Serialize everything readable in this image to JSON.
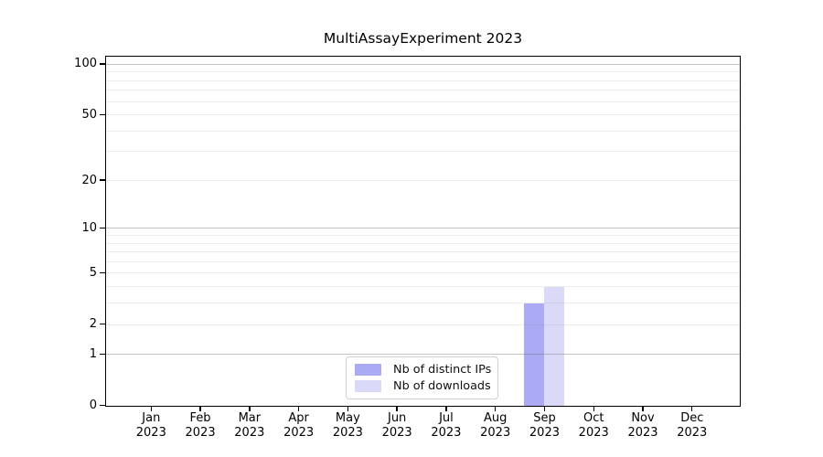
{
  "figure": {
    "background": "#ffffff",
    "axis_color": "#000000"
  },
  "chart_data": {
    "type": "bar",
    "title": "MultiAssayExperiment 2023",
    "x_categories": [
      "Jan",
      "Feb",
      "Mar",
      "Apr",
      "May",
      "Jun",
      "Jul",
      "Aug",
      "Sep",
      "Oct",
      "Nov",
      "Dec"
    ],
    "x_year": "2023",
    "series": [
      {
        "name": "Nb of distinct IPs",
        "color": "#aaaaf5",
        "values": [
          0,
          0,
          0,
          0,
          0,
          0,
          0,
          0,
          3,
          0,
          0,
          0
        ]
      },
      {
        "name": "Nb of downloads",
        "color": "#dadaf8",
        "values": [
          0,
          0,
          0,
          0,
          0,
          0,
          0,
          0,
          4,
          0,
          0,
          0
        ]
      }
    ],
    "yscale": "log1p",
    "yticks": [
      0,
      1,
      2,
      5,
      10,
      20,
      50,
      100
    ],
    "ylim": [
      0,
      110
    ],
    "xlabel": "",
    "ylabel": "",
    "grid": "horizontal, major at 1/10/100, minor at 2-9 and 20-90, drawn over bars",
    "legend_position": "lower center"
  },
  "legend": {
    "items": [
      {
        "label": "Nb of distinct IPs"
      },
      {
        "label": "Nb of downloads"
      }
    ]
  }
}
